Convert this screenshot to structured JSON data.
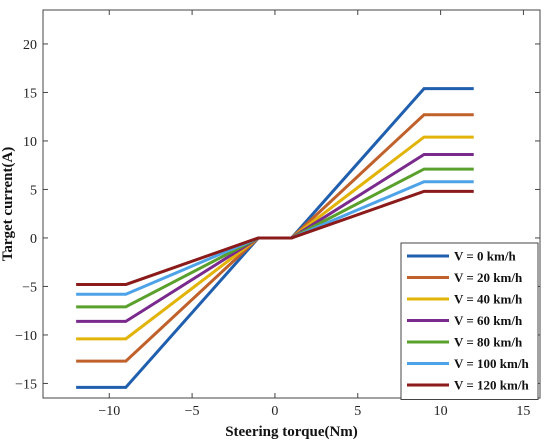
{
  "chart_data": {
    "type": "line",
    "title": "",
    "xlabel": "Steering torque(Nm)",
    "ylabel": "Target current(A)",
    "xlim": [
      -14,
      16
    ],
    "ylim": [
      -16.5,
      23.5
    ],
    "xticks": [
      -10,
      -5,
      0,
      5,
      10,
      15
    ],
    "yticks": [
      -15,
      -10,
      -5,
      0,
      5,
      10,
      15,
      20
    ],
    "xtick_labels": [
      "−10",
      "−5",
      "0",
      "5",
      "10",
      "15"
    ],
    "ytick_labels": [
      "−15",
      "−10",
      "−5",
      "0",
      "5",
      "10",
      "15",
      "20"
    ],
    "grid": false,
    "legend_position": "bottom-right",
    "x": [
      -12,
      -9,
      -1,
      1,
      9,
      12
    ],
    "series": [
      {
        "name": "V = 0 km/h",
        "color": "#1f5fae",
        "values": [
          -15.4,
          -15.4,
          0,
          0,
          15.4,
          15.4
        ]
      },
      {
        "name": "V = 20 km/h",
        "color": "#c0612b",
        "values": [
          -12.7,
          -12.7,
          0,
          0,
          12.7,
          12.7
        ]
      },
      {
        "name": "V = 40 km/h",
        "color": "#e2b40a",
        "values": [
          -10.4,
          -10.4,
          0,
          0,
          10.4,
          10.4
        ]
      },
      {
        "name": "V = 60 km/h",
        "color": "#7a2a8c",
        "values": [
          -8.6,
          -8.6,
          0,
          0,
          8.6,
          8.6
        ]
      },
      {
        "name": "V = 80 km/h",
        "color": "#5aa02c",
        "values": [
          -7.1,
          -7.1,
          0,
          0,
          7.1,
          7.1
        ]
      },
      {
        "name": "V = 100 km/h",
        "color": "#4ea3e8",
        "values": [
          -5.8,
          -5.8,
          0,
          0,
          5.8,
          5.8
        ]
      },
      {
        "name": "V = 120 km/h",
        "color": "#8b1a1a",
        "values": [
          -4.8,
          -4.8,
          0,
          0,
          4.8,
          4.8
        ]
      }
    ],
    "extra_series_colors": {
      "orange_right_V20": "#ec5a1c",
      "cyan_right_V100": "#18b7dd",
      "red_right_V120": "#d8001a",
      "brown_left_V120": "#6f3a2b"
    }
  }
}
